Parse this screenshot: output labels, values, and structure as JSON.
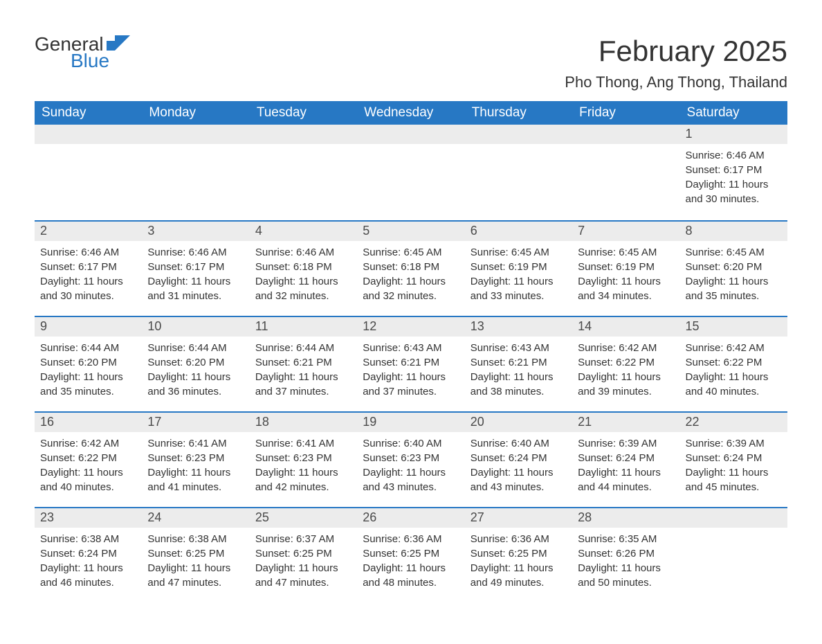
{
  "logo": {
    "word1": "General",
    "word2": "Blue",
    "flag_color": "#2778c4"
  },
  "title": "February 2025",
  "location": "Pho Thong, Ang Thong, Thailand",
  "colors": {
    "header_bg": "#2778c4",
    "header_text": "#ffffff",
    "row_stripe": "#ececec",
    "row_border": "#2778c4",
    "body_text": "#333333",
    "background": "#ffffff"
  },
  "fonts": {
    "family": "Arial",
    "title_size_pt": 31,
    "location_size_pt": 16,
    "header_size_pt": 14,
    "daynum_size_pt": 13,
    "body_size_pt": 11
  },
  "day_labels": [
    "Sunday",
    "Monday",
    "Tuesday",
    "Wednesday",
    "Thursday",
    "Friday",
    "Saturday"
  ],
  "weeks": [
    [
      null,
      null,
      null,
      null,
      null,
      null,
      {
        "n": "1",
        "sunrise": "Sunrise: 6:46 AM",
        "sunset": "Sunset: 6:17 PM",
        "d1": "Daylight: 11 hours",
        "d2": "and 30 minutes."
      }
    ],
    [
      {
        "n": "2",
        "sunrise": "Sunrise: 6:46 AM",
        "sunset": "Sunset: 6:17 PM",
        "d1": "Daylight: 11 hours",
        "d2": "and 30 minutes."
      },
      {
        "n": "3",
        "sunrise": "Sunrise: 6:46 AM",
        "sunset": "Sunset: 6:17 PM",
        "d1": "Daylight: 11 hours",
        "d2": "and 31 minutes."
      },
      {
        "n": "4",
        "sunrise": "Sunrise: 6:46 AM",
        "sunset": "Sunset: 6:18 PM",
        "d1": "Daylight: 11 hours",
        "d2": "and 32 minutes."
      },
      {
        "n": "5",
        "sunrise": "Sunrise: 6:45 AM",
        "sunset": "Sunset: 6:18 PM",
        "d1": "Daylight: 11 hours",
        "d2": "and 32 minutes."
      },
      {
        "n": "6",
        "sunrise": "Sunrise: 6:45 AM",
        "sunset": "Sunset: 6:19 PM",
        "d1": "Daylight: 11 hours",
        "d2": "and 33 minutes."
      },
      {
        "n": "7",
        "sunrise": "Sunrise: 6:45 AM",
        "sunset": "Sunset: 6:19 PM",
        "d1": "Daylight: 11 hours",
        "d2": "and 34 minutes."
      },
      {
        "n": "8",
        "sunrise": "Sunrise: 6:45 AM",
        "sunset": "Sunset: 6:20 PM",
        "d1": "Daylight: 11 hours",
        "d2": "and 35 minutes."
      }
    ],
    [
      {
        "n": "9",
        "sunrise": "Sunrise: 6:44 AM",
        "sunset": "Sunset: 6:20 PM",
        "d1": "Daylight: 11 hours",
        "d2": "and 35 minutes."
      },
      {
        "n": "10",
        "sunrise": "Sunrise: 6:44 AM",
        "sunset": "Sunset: 6:20 PM",
        "d1": "Daylight: 11 hours",
        "d2": "and 36 minutes."
      },
      {
        "n": "11",
        "sunrise": "Sunrise: 6:44 AM",
        "sunset": "Sunset: 6:21 PM",
        "d1": "Daylight: 11 hours",
        "d2": "and 37 minutes."
      },
      {
        "n": "12",
        "sunrise": "Sunrise: 6:43 AM",
        "sunset": "Sunset: 6:21 PM",
        "d1": "Daylight: 11 hours",
        "d2": "and 37 minutes."
      },
      {
        "n": "13",
        "sunrise": "Sunrise: 6:43 AM",
        "sunset": "Sunset: 6:21 PM",
        "d1": "Daylight: 11 hours",
        "d2": "and 38 minutes."
      },
      {
        "n": "14",
        "sunrise": "Sunrise: 6:42 AM",
        "sunset": "Sunset: 6:22 PM",
        "d1": "Daylight: 11 hours",
        "d2": "and 39 minutes."
      },
      {
        "n": "15",
        "sunrise": "Sunrise: 6:42 AM",
        "sunset": "Sunset: 6:22 PM",
        "d1": "Daylight: 11 hours",
        "d2": "and 40 minutes."
      }
    ],
    [
      {
        "n": "16",
        "sunrise": "Sunrise: 6:42 AM",
        "sunset": "Sunset: 6:22 PM",
        "d1": "Daylight: 11 hours",
        "d2": "and 40 minutes."
      },
      {
        "n": "17",
        "sunrise": "Sunrise: 6:41 AM",
        "sunset": "Sunset: 6:23 PM",
        "d1": "Daylight: 11 hours",
        "d2": "and 41 minutes."
      },
      {
        "n": "18",
        "sunrise": "Sunrise: 6:41 AM",
        "sunset": "Sunset: 6:23 PM",
        "d1": "Daylight: 11 hours",
        "d2": "and 42 minutes."
      },
      {
        "n": "19",
        "sunrise": "Sunrise: 6:40 AM",
        "sunset": "Sunset: 6:23 PM",
        "d1": "Daylight: 11 hours",
        "d2": "and 43 minutes."
      },
      {
        "n": "20",
        "sunrise": "Sunrise: 6:40 AM",
        "sunset": "Sunset: 6:24 PM",
        "d1": "Daylight: 11 hours",
        "d2": "and 43 minutes."
      },
      {
        "n": "21",
        "sunrise": "Sunrise: 6:39 AM",
        "sunset": "Sunset: 6:24 PM",
        "d1": "Daylight: 11 hours",
        "d2": "and 44 minutes."
      },
      {
        "n": "22",
        "sunrise": "Sunrise: 6:39 AM",
        "sunset": "Sunset: 6:24 PM",
        "d1": "Daylight: 11 hours",
        "d2": "and 45 minutes."
      }
    ],
    [
      {
        "n": "23",
        "sunrise": "Sunrise: 6:38 AM",
        "sunset": "Sunset: 6:24 PM",
        "d1": "Daylight: 11 hours",
        "d2": "and 46 minutes."
      },
      {
        "n": "24",
        "sunrise": "Sunrise: 6:38 AM",
        "sunset": "Sunset: 6:25 PM",
        "d1": "Daylight: 11 hours",
        "d2": "and 47 minutes."
      },
      {
        "n": "25",
        "sunrise": "Sunrise: 6:37 AM",
        "sunset": "Sunset: 6:25 PM",
        "d1": "Daylight: 11 hours",
        "d2": "and 47 minutes."
      },
      {
        "n": "26",
        "sunrise": "Sunrise: 6:36 AM",
        "sunset": "Sunset: 6:25 PM",
        "d1": "Daylight: 11 hours",
        "d2": "and 48 minutes."
      },
      {
        "n": "27",
        "sunrise": "Sunrise: 6:36 AM",
        "sunset": "Sunset: 6:25 PM",
        "d1": "Daylight: 11 hours",
        "d2": "and 49 minutes."
      },
      {
        "n": "28",
        "sunrise": "Sunrise: 6:35 AM",
        "sunset": "Sunset: 6:26 PM",
        "d1": "Daylight: 11 hours",
        "d2": "and 50 minutes."
      },
      null
    ]
  ]
}
